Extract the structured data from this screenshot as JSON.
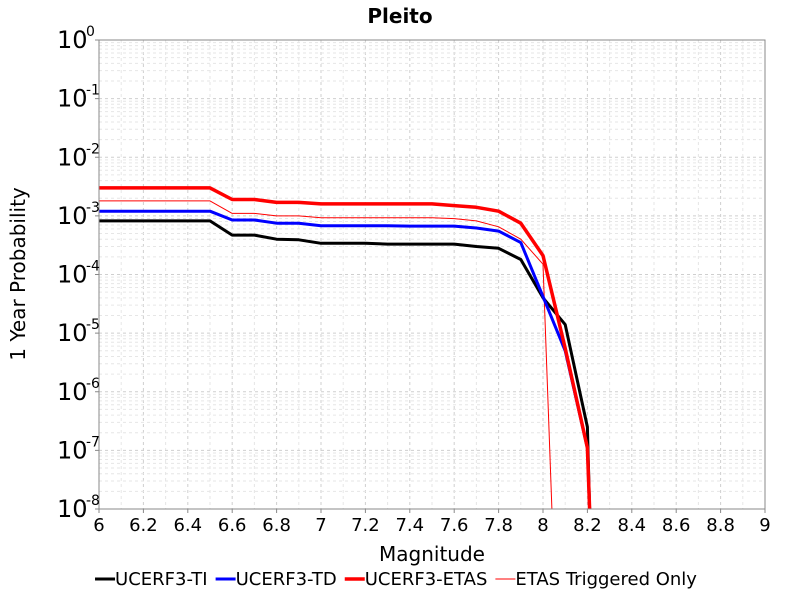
{
  "chart_data": {
    "type": "line",
    "title": "Pleito",
    "xlabel": "Magnitude",
    "ylabel": "1 Year Probability",
    "xlim": [
      6,
      9
    ],
    "ylim": [
      1e-08,
      1
    ],
    "yscale": "log",
    "grid": true,
    "legend_position": "bottom",
    "x_ticks": [
      "6",
      "6.2",
      "6.4",
      "6.6",
      "6.8",
      "7",
      "7.2",
      "7.4",
      "7.6",
      "7.8",
      "8",
      "8.2",
      "8.4",
      "8.6",
      "8.8",
      "9"
    ],
    "y_ticks": [
      {
        "base": "10",
        "exp": "0"
      },
      {
        "base": "10",
        "exp": "-1"
      },
      {
        "base": "10",
        "exp": "-2"
      },
      {
        "base": "10",
        "exp": "-3"
      },
      {
        "base": "10",
        "exp": "-4"
      },
      {
        "base": "10",
        "exp": "-5"
      },
      {
        "base": "10",
        "exp": "-6"
      },
      {
        "base": "10",
        "exp": "-7"
      },
      {
        "base": "10",
        "exp": "-8"
      }
    ],
    "series": [
      {
        "name": "UCERF3-TI",
        "color": "#000000",
        "width": 3,
        "x": [
          6.0,
          6.1,
          6.2,
          6.3,
          6.4,
          6.5,
          6.6,
          6.7,
          6.8,
          6.9,
          7.0,
          7.1,
          7.2,
          7.3,
          7.4,
          7.5,
          7.6,
          7.7,
          7.8,
          7.9,
          8.0,
          8.1,
          8.2,
          8.21
        ],
        "y": [
          0.00082,
          0.00082,
          0.00082,
          0.00082,
          0.00082,
          0.00082,
          0.00047,
          0.00047,
          0.0004,
          0.00039,
          0.00034,
          0.00034,
          0.00034,
          0.00033,
          0.00033,
          0.00033,
          0.00033,
          0.0003,
          0.00028,
          0.00018,
          4e-05,
          1.4e-05,
          2.5e-07,
          1e-08
        ]
      },
      {
        "name": "UCERF3-TD",
        "color": "#0000ff",
        "width": 3,
        "x": [
          6.0,
          6.1,
          6.2,
          6.3,
          6.4,
          6.5,
          6.6,
          6.7,
          6.8,
          6.9,
          7.0,
          7.1,
          7.2,
          7.3,
          7.4,
          7.5,
          7.6,
          7.7,
          7.8,
          7.9,
          8.0,
          8.1,
          8.2,
          8.21
        ],
        "y": [
          0.0012,
          0.0012,
          0.0012,
          0.0012,
          0.0012,
          0.0012,
          0.00085,
          0.00085,
          0.00075,
          0.00075,
          0.00068,
          0.00068,
          0.00068,
          0.00068,
          0.00067,
          0.00067,
          0.00067,
          0.00062,
          0.00055,
          0.00035,
          4.2e-05,
          5e-06,
          1.1e-07,
          1e-08
        ]
      },
      {
        "name": "UCERF3-ETAS",
        "color": "#ff0000",
        "width": 3.5,
        "x": [
          6.0,
          6.1,
          6.2,
          6.3,
          6.4,
          6.5,
          6.6,
          6.7,
          6.8,
          6.9,
          7.0,
          7.1,
          7.2,
          7.3,
          7.4,
          7.5,
          7.6,
          7.7,
          7.8,
          7.9,
          8.0,
          8.1,
          8.2,
          8.21
        ],
        "y": [
          0.003,
          0.003,
          0.003,
          0.003,
          0.003,
          0.003,
          0.0019,
          0.0019,
          0.0017,
          0.0017,
          0.0016,
          0.0016,
          0.0016,
          0.0016,
          0.0016,
          0.0016,
          0.0015,
          0.0014,
          0.0012,
          0.00075,
          0.00021,
          5.5e-06,
          1.1e-07,
          1e-08
        ]
      },
      {
        "name": "ETAS Triggered Only",
        "color": "#ff0000",
        "width": 1,
        "x": [
          6.0,
          6.1,
          6.2,
          6.3,
          6.4,
          6.5,
          6.6,
          6.7,
          6.8,
          6.9,
          7.0,
          7.1,
          7.2,
          7.3,
          7.4,
          7.5,
          7.6,
          7.7,
          7.8,
          7.9,
          8.0,
          8.04
        ],
        "y": [
          0.0018,
          0.0018,
          0.0018,
          0.0018,
          0.0018,
          0.0018,
          0.0011,
          0.0011,
          0.001,
          0.001,
          0.00093,
          0.00093,
          0.00093,
          0.00093,
          0.00093,
          0.00093,
          0.0009,
          0.00082,
          0.00065,
          0.0004,
          0.00015,
          1e-08
        ]
      }
    ]
  }
}
